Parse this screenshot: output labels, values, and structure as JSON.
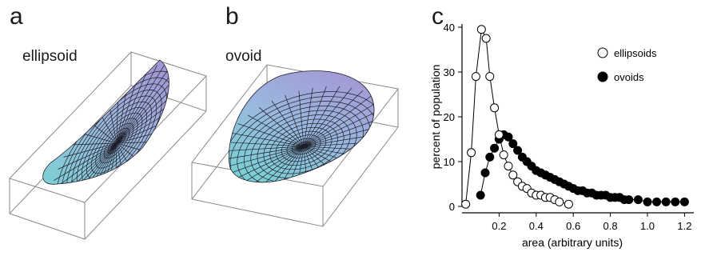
{
  "panels": {
    "a": {
      "letter": "a",
      "name": "ellipsoid"
    },
    "b": {
      "letter": "b",
      "name": "ovoid"
    },
    "c": {
      "letter": "c"
    }
  },
  "colors": {
    "surface_top": "#a08fcf",
    "surface_mid": "#9db6dd",
    "surface_bottom": "#79d2d4",
    "mesh": "#1e1e28",
    "box": "#8a8a8a",
    "series_line": "#000000"
  },
  "chart_data": {
    "type": "line",
    "xlabel": "area (arbitrary units)",
    "ylabel": "percent of population",
    "xlim": [
      0,
      1.25
    ],
    "ylim": [
      0,
      40
    ],
    "xticks": [
      0.2,
      0.4,
      0.6,
      0.8,
      1.0,
      1.2
    ],
    "xtick_labels": [
      "0.2",
      "0.4",
      "0.6",
      "0.8",
      "1.0",
      "1.2"
    ],
    "yticks": [
      0,
      10,
      20,
      30,
      40
    ],
    "ytick_labels": [
      "0",
      "10",
      "20",
      "30",
      "40"
    ],
    "legend_position": "top-right",
    "series": [
      {
        "name": "ellipsoids",
        "marker": "open-circle",
        "x": [
          0.02,
          0.05,
          0.075,
          0.105,
          0.13,
          0.15,
          0.175,
          0.2,
          0.225,
          0.25,
          0.275,
          0.3,
          0.325,
          0.35,
          0.375,
          0.4,
          0.425,
          0.45,
          0.475,
          0.5,
          0.525,
          0.575
        ],
        "y": [
          0.5,
          12,
          29,
          39.5,
          37.5,
          29,
          22,
          16,
          11.5,
          9,
          7,
          5.5,
          4.5,
          4,
          3,
          2.5,
          2.5,
          2,
          2,
          1.5,
          1,
          0.5
        ]
      },
      {
        "name": "ovoids",
        "marker": "filled-circle",
        "x": [
          0.1,
          0.125,
          0.15,
          0.175,
          0.2,
          0.225,
          0.25,
          0.275,
          0.3,
          0.325,
          0.35,
          0.375,
          0.4,
          0.425,
          0.45,
          0.475,
          0.5,
          0.525,
          0.55,
          0.575,
          0.6,
          0.625,
          0.65,
          0.675,
          0.7,
          0.725,
          0.75,
          0.775,
          0.8,
          0.825,
          0.85,
          0.875,
          0.9,
          0.95,
          1.0,
          1.05,
          1.1,
          1.15,
          1.2
        ],
        "y": [
          2.5,
          7.5,
          11,
          13,
          15,
          16,
          15.5,
          14,
          12.5,
          11,
          10,
          9,
          8,
          7.5,
          7,
          6.5,
          6,
          5.5,
          5,
          4.5,
          4,
          3.5,
          3.5,
          3,
          3,
          2.5,
          2.5,
          2.5,
          2,
          2,
          2,
          1.5,
          1.5,
          1.5,
          1,
          1,
          1,
          1,
          1
        ]
      }
    ]
  }
}
